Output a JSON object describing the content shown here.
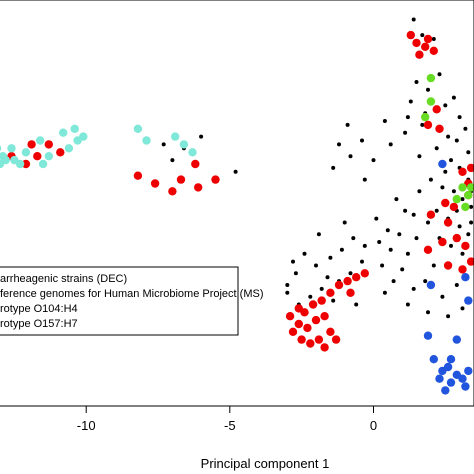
{
  "chart_data": {
    "type": "scatter",
    "xlabel": "Principal component 1",
    "ylabel": "",
    "xlim": [
      -13,
      3.5
    ],
    "ylim": [
      -5.2,
      5.2
    ],
    "x_ticks": [
      -10,
      -5,
      0
    ],
    "x_tick_labels": [
      "-10",
      "-5",
      "0"
    ],
    "grid": false,
    "legend": {
      "placement": "bottom-left",
      "entries": [
        {
          "label": "arrheagenic strains (DEC)"
        },
        {
          "label": "ference genomes for Human Microbiome Project (MS)"
        },
        {
          "label": "rotype O104:H4"
        },
        {
          "label": "rotype O157:H7"
        }
      ]
    },
    "series": [
      {
        "color": "#000000",
        "marker_size": "small",
        "points": [
          [
            1.4,
            4.7
          ],
          [
            1.7,
            4.3
          ],
          [
            2.1,
            4.2
          ],
          [
            1.5,
            3.1
          ],
          [
            1.9,
            2.9
          ],
          [
            2.3,
            3.3
          ],
          [
            1.3,
            2.6
          ],
          [
            1.8,
            2.3
          ],
          [
            2.5,
            2.5
          ],
          [
            1.2,
            2.2
          ],
          [
            1.7,
            2.0
          ],
          [
            2.8,
            2.7
          ],
          [
            3.0,
            2.2
          ],
          [
            3.2,
            1.9
          ],
          [
            2.9,
            1.6
          ],
          [
            3.3,
            1.3
          ],
          [
            2.7,
            1.1
          ],
          [
            3.0,
            0.9
          ],
          [
            3.3,
            0.6
          ],
          [
            -0.9,
            2.0
          ],
          [
            -1.2,
            1.5
          ],
          [
            -0.8,
            1.2
          ],
          [
            -0.4,
            1.6
          ],
          [
            0.0,
            1.1
          ],
          [
            -1.4,
            0.9
          ],
          [
            1.1,
            1.8
          ],
          [
            0.6,
            1.5
          ],
          [
            0.4,
            2.1
          ],
          [
            -7.3,
            1.5
          ],
          [
            -6.6,
            1.4
          ],
          [
            -7.0,
            1.1
          ],
          [
            -6.0,
            1.7
          ],
          [
            -4.8,
            0.8
          ],
          [
            2.4,
            0.4
          ],
          [
            2.8,
            0.3
          ],
          [
            3.1,
            0.1
          ],
          [
            3.4,
            -0.1
          ],
          [
            2.2,
            -0.2
          ],
          [
            2.6,
            -0.4
          ],
          [
            3.0,
            -0.6
          ],
          [
            3.3,
            -0.8
          ],
          [
            1.9,
            -0.5
          ],
          [
            2.3,
            -0.9
          ],
          [
            2.7,
            -1.1
          ],
          [
            3.1,
            -1.3
          ],
          [
            1.5,
            -0.9
          ],
          [
            1.2,
            -1.3
          ],
          [
            0.9,
            -0.8
          ],
          [
            0.6,
            -1.2
          ],
          [
            0.2,
            -1.0
          ],
          [
            -0.3,
            -1.1
          ],
          [
            -0.7,
            -0.9
          ],
          [
            -1.1,
            -1.2
          ],
          [
            -1.5,
            -1.4
          ],
          [
            -2.0,
            -1.6
          ],
          [
            -2.4,
            -1.3
          ],
          [
            -2.7,
            -1.8
          ],
          [
            -3.0,
            -2.1
          ],
          [
            -2.6,
            -2.6
          ],
          [
            -2.2,
            -2.4
          ],
          [
            -1.8,
            -2.2
          ],
          [
            -1.6,
            -1.9
          ],
          [
            -1.2,
            -2.0
          ],
          [
            -0.8,
            -1.8
          ],
          [
            -0.4,
            -1.5
          ],
          [
            0.3,
            -1.6
          ],
          [
            0.7,
            -2.0
          ],
          [
            1.0,
            -1.7
          ],
          [
            1.4,
            -2.2
          ],
          [
            1.8,
            -2.0
          ],
          [
            2.1,
            -1.6
          ],
          [
            2.4,
            -2.4
          ],
          [
            2.9,
            -2.1
          ],
          [
            3.2,
            -1.9
          ],
          [
            1.1,
            -0.2
          ],
          [
            0.8,
            0.1
          ],
          [
            1.6,
            0.3
          ],
          [
            2.0,
            0.6
          ],
          [
            2.5,
            0.8
          ],
          [
            2.9,
            -0.2
          ],
          [
            3.4,
            0.3
          ],
          [
            3.4,
            -0.5
          ],
          [
            -3.0,
            -2.3
          ],
          [
            -2.8,
            -1.5
          ],
          [
            -1.4,
            -2.5
          ],
          [
            -0.6,
            -2.6
          ],
          [
            0.4,
            -2.3
          ],
          [
            1.2,
            -2.6
          ],
          [
            1.9,
            -2.8
          ],
          [
            2.6,
            -2.9
          ],
          [
            3.1,
            -2.7
          ],
          [
            -1.9,
            -0.8
          ],
          [
            -1.0,
            -0.5
          ],
          [
            0.1,
            -0.4
          ],
          [
            0.5,
            -0.7
          ],
          [
            1.4,
            -0.3
          ],
          [
            2.2,
            1.4
          ],
          [
            2.6,
            1.7
          ],
          [
            1.6,
            1.2
          ],
          [
            -0.3,
            0.6
          ]
        ]
      },
      {
        "color": "#ee0000",
        "marker_size": "large",
        "points": [
          [
            1.3,
            4.3
          ],
          [
            1.5,
            4.1
          ],
          [
            1.8,
            4.0
          ],
          [
            1.6,
            3.8
          ],
          [
            1.9,
            4.2
          ],
          [
            2.1,
            3.9
          ],
          [
            2.2,
            2.4
          ],
          [
            1.9,
            2.0
          ],
          [
            2.3,
            1.9
          ],
          [
            3.1,
            0.8
          ],
          [
            3.3,
            0.5
          ],
          [
            3.4,
            0.9
          ],
          [
            2.5,
            0.0
          ],
          [
            2.8,
            -0.1
          ],
          [
            2.6,
            -0.5
          ],
          [
            2.9,
            -0.9
          ],
          [
            3.2,
            -1.1
          ],
          [
            2.4,
            -1.0
          ],
          [
            2.0,
            -0.3
          ],
          [
            1.9,
            -1.2
          ],
          [
            2.6,
            -1.6
          ],
          [
            3.1,
            -1.7
          ],
          [
            3.4,
            -1.5
          ],
          [
            3.3,
            0.2
          ],
          [
            -0.3,
            -1.8
          ],
          [
            -0.6,
            -1.9
          ],
          [
            -0.9,
            -2.0
          ],
          [
            -0.8,
            -2.3
          ],
          [
            -1.2,
            -2.1
          ],
          [
            -1.5,
            -2.3
          ],
          [
            -1.8,
            -2.5
          ],
          [
            -2.1,
            -2.6
          ],
          [
            -2.4,
            -2.8
          ],
          [
            -2.6,
            -3.1
          ],
          [
            -2.8,
            -3.3
          ],
          [
            -2.3,
            -3.2
          ],
          [
            -2.0,
            -3.0
          ],
          [
            -1.7,
            -2.9
          ],
          [
            -1.5,
            -3.3
          ],
          [
            -1.9,
            -3.5
          ],
          [
            -2.5,
            -3.5
          ],
          [
            -2.2,
            -3.6
          ],
          [
            -1.7,
            -3.7
          ],
          [
            -1.3,
            -3.5
          ],
          [
            -2.6,
            -2.7
          ],
          [
            -2.9,
            -2.9
          ],
          [
            -12.6,
            1.2
          ],
          [
            -12.1,
            1.0
          ],
          [
            -11.7,
            1.2
          ],
          [
            -11.3,
            1.5
          ],
          [
            -10.9,
            1.3
          ],
          [
            -11.9,
            1.5
          ],
          [
            -8.2,
            0.7
          ],
          [
            -7.6,
            0.5
          ],
          [
            -7.0,
            0.3
          ],
          [
            -6.7,
            0.6
          ],
          [
            -6.2,
            1.0
          ],
          [
            -5.5,
            0.6
          ],
          [
            -6.1,
            0.4
          ]
        ]
      },
      {
        "color": "#7fe8d8",
        "marker_size": "large",
        "points": [
          [
            -13.2,
            1.3
          ],
          [
            -13.0,
            1.0
          ],
          [
            -12.9,
            1.2
          ],
          [
            -12.6,
            1.4
          ],
          [
            -12.5,
            1.1
          ],
          [
            -12.3,
            1.0
          ],
          [
            -12.1,
            1.3
          ],
          [
            -11.6,
            1.6
          ],
          [
            -11.3,
            1.2
          ],
          [
            -10.8,
            1.8
          ],
          [
            -10.6,
            1.4
          ],
          [
            -10.4,
            1.9
          ],
          [
            -10.3,
            1.6
          ],
          [
            -10.1,
            1.7
          ],
          [
            -8.2,
            1.9
          ],
          [
            -7.9,
            1.6
          ],
          [
            -6.6,
            1.5
          ],
          [
            -6.3,
            1.3
          ],
          [
            -6.9,
            1.7
          ],
          [
            -12.8,
            1.1
          ],
          [
            -13.1,
            1.4
          ],
          [
            -11.5,
            1.0
          ]
        ]
      },
      {
        "color": "#66dd22",
        "marker_size": "large",
        "points": [
          [
            2.0,
            3.2
          ],
          [
            2.0,
            2.6
          ],
          [
            1.8,
            2.2
          ],
          [
            3.1,
            0.4
          ],
          [
            3.3,
            0.2
          ],
          [
            3.2,
            -0.1
          ],
          [
            2.9,
            0.1
          ],
          [
            3.4,
            0.4
          ]
        ]
      },
      {
        "color": "#2255dd",
        "marker_size": "large",
        "points": [
          [
            2.4,
            1.0
          ],
          [
            2.0,
            -2.1
          ],
          [
            3.2,
            -1.9
          ],
          [
            3.3,
            -2.5
          ],
          [
            2.9,
            -3.5
          ],
          [
            1.9,
            -3.4
          ],
          [
            2.1,
            -4.0
          ],
          [
            2.4,
            -4.3
          ],
          [
            2.7,
            -4.6
          ],
          [
            2.9,
            -4.4
          ],
          [
            3.1,
            -4.5
          ],
          [
            2.3,
            -4.5
          ],
          [
            2.6,
            -4.2
          ],
          [
            3.2,
            -4.7
          ],
          [
            2.5,
            -4.8
          ],
          [
            3.3,
            -4.3
          ],
          [
            2.7,
            -4.0
          ]
        ]
      }
    ]
  }
}
